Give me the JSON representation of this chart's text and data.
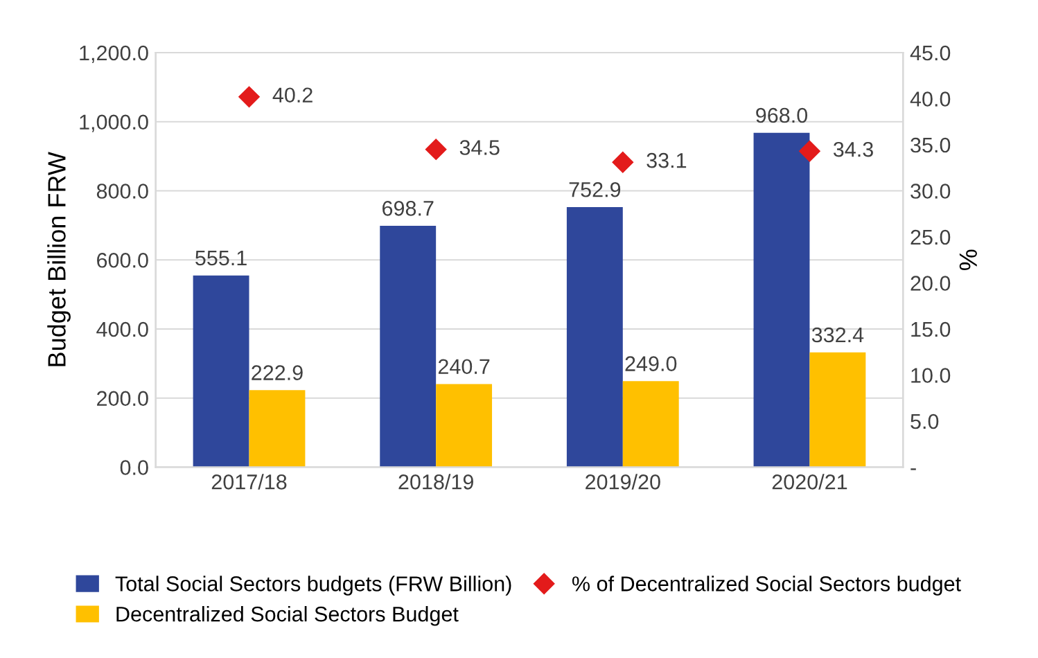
{
  "chart_data": {
    "type": "bar",
    "ylabel": "Budget Billion FRW",
    "y2label": "%",
    "categories": [
      "2017/18",
      "2018/19",
      "2019/20",
      "2020/21"
    ],
    "series": [
      {
        "name": "Total Social Sectors budgets (FRW Billion)",
        "color": "#2f479b",
        "values": [
          555.1,
          698.7,
          752.9,
          968.0
        ],
        "value_labels": [
          "555.1",
          "698.7",
          "752.9",
          "968.0"
        ]
      },
      {
        "name": "Decentralized Social Sectors Budget",
        "color": "#ffc000",
        "values": [
          222.9,
          240.7,
          249.0,
          332.4
        ],
        "value_labels": [
          "222.9",
          "240.7",
          "249.0",
          "332.4"
        ]
      },
      {
        "name": "% of Decentralized Social Sectors budget",
        "type": "scatter",
        "axis": "y2",
        "marker": "diamond",
        "color": "#e31b1b",
        "values": [
          40.2,
          34.5,
          33.1,
          34.3
        ],
        "value_labels": [
          "40.2",
          "34.5",
          "33.1",
          "34.3"
        ]
      }
    ],
    "ylim": [
      0,
      1200
    ],
    "yticks": [
      {
        "value": 0,
        "label": "0.0"
      },
      {
        "value": 200,
        "label": "200.0"
      },
      {
        "value": 400,
        "label": "400.0"
      },
      {
        "value": 600,
        "label": "600.0"
      },
      {
        "value": 800,
        "label": "800.0"
      },
      {
        "value": 1000,
        "label": "1,000.0"
      },
      {
        "value": 1200,
        "label": "1,200.0"
      }
    ],
    "y2lim": [
      0,
      45
    ],
    "y2ticks": [
      {
        "value": 0,
        "label": "-"
      },
      {
        "value": 5,
        "label": "5.0"
      },
      {
        "value": 10,
        "label": "10.0"
      },
      {
        "value": 15,
        "label": "15.0"
      },
      {
        "value": 20,
        "label": "20.0"
      },
      {
        "value": 25,
        "label": "25.0"
      },
      {
        "value": 30,
        "label": "30.0"
      },
      {
        "value": 35,
        "label": "35.0"
      },
      {
        "value": 40,
        "label": "40.0"
      },
      {
        "value": 45,
        "label": "45.0"
      }
    ],
    "grid": "y",
    "legend": "bottom"
  }
}
